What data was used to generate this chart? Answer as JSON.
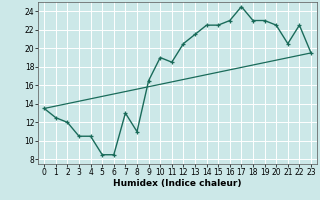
{
  "xlabel": "Humidex (Indice chaleur)",
  "bg_color": "#cce8e8",
  "grid_color": "#ffffff",
  "line_color": "#1a6b5a",
  "xlim": [
    -0.5,
    23.5
  ],
  "ylim": [
    7.5,
    25.0
  ],
  "xticks": [
    0,
    1,
    2,
    3,
    4,
    5,
    6,
    7,
    8,
    9,
    10,
    11,
    12,
    13,
    14,
    15,
    16,
    17,
    18,
    19,
    20,
    21,
    22,
    23
  ],
  "yticks": [
    8,
    10,
    12,
    14,
    16,
    18,
    20,
    22,
    24
  ],
  "line1_x": [
    0,
    1,
    2,
    3,
    4,
    5,
    6,
    7,
    8,
    9,
    10,
    11,
    12,
    13,
    14,
    15,
    16,
    17,
    18,
    19,
    20,
    21,
    22,
    23
  ],
  "line1_y": [
    13.5,
    12.5,
    12.0,
    10.5,
    10.5,
    8.5,
    8.5,
    13.0,
    11.0,
    16.5,
    19.0,
    18.5,
    20.5,
    21.5,
    22.5,
    22.5,
    23.0,
    24.5,
    23.0,
    23.0,
    22.5,
    20.5,
    22.5,
    19.5
  ],
  "line2_x": [
    0,
    23
  ],
  "line2_y": [
    13.5,
    19.5
  ]
}
